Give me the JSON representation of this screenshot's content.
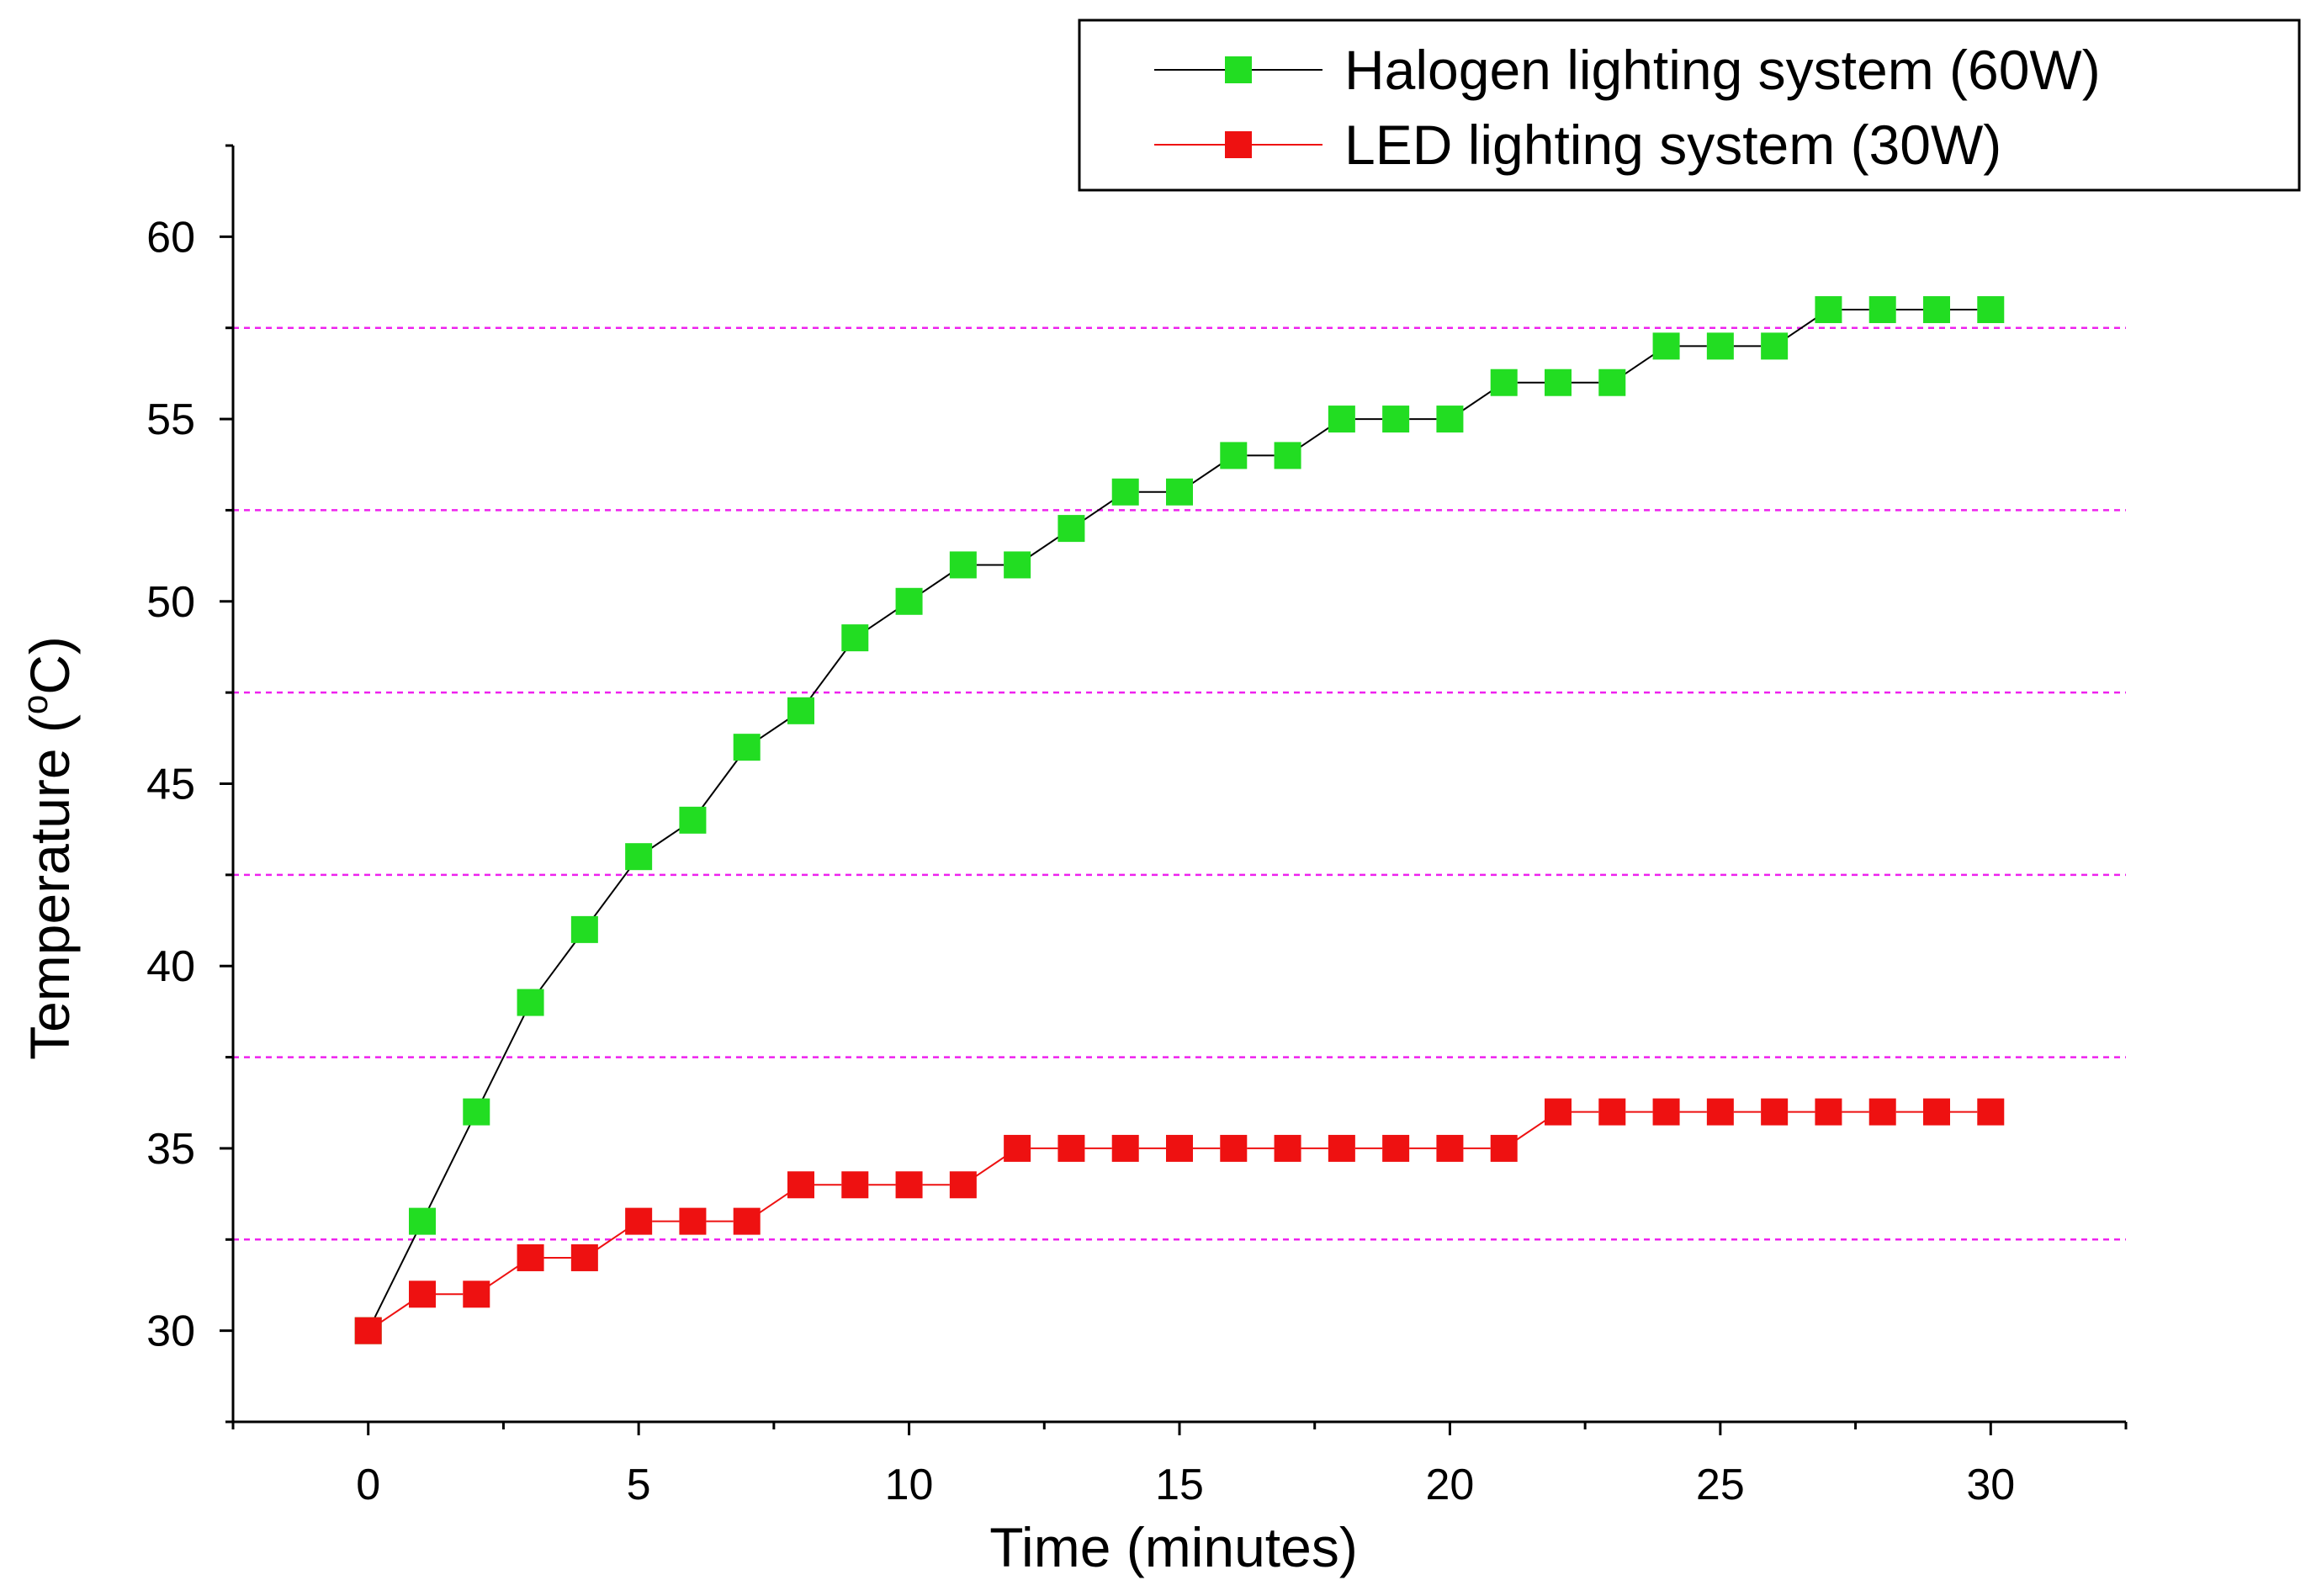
{
  "chart_data": {
    "type": "line",
    "xlabel": "Time (minutes)",
    "ylabel": {
      "prefix": "Temperature (",
      "superscript": "o",
      "suffix": "C)"
    },
    "xlim": [
      -2.5,
      32.5
    ],
    "ylim": [
      27.5,
      62.5
    ],
    "xticks": [
      0,
      5,
      10,
      15,
      20,
      25,
      30
    ],
    "yticks": [
      30,
      35,
      40,
      45,
      50,
      55,
      60
    ],
    "grid_lines_y": [
      32.5,
      37.5,
      42.5,
      47.5,
      52.5,
      57.5
    ],
    "grid_color": "#ee22ee",
    "legend_position": "top-right",
    "x": [
      0,
      1,
      2,
      3,
      4,
      5,
      6,
      7,
      8,
      9,
      10,
      11,
      12,
      13,
      14,
      15,
      16,
      17,
      18,
      19,
      20,
      21,
      22,
      23,
      24,
      25,
      26,
      27,
      28,
      29,
      30
    ],
    "series": [
      {
        "name": "Halogen lighting system (60W)",
        "marker_color": "#22dd22",
        "line_color": "#000000",
        "values": [
          30,
          33,
          36,
          39,
          41,
          43,
          44,
          46,
          47,
          49,
          50,
          51,
          51,
          52,
          53,
          53,
          54,
          54,
          55,
          55,
          55,
          56,
          56,
          56,
          57,
          57,
          57,
          58,
          58,
          58,
          58
        ]
      },
      {
        "name": "LED lighting system (30W)",
        "marker_color": "#ee1111",
        "line_color": "#ee1111",
        "values": [
          30,
          31,
          31,
          32,
          32,
          33,
          33,
          33,
          34,
          34,
          34,
          34,
          35,
          35,
          35,
          35,
          35,
          35,
          35,
          35,
          35,
          35,
          36,
          36,
          36,
          36,
          36,
          36,
          36,
          36,
          36
        ]
      }
    ]
  }
}
